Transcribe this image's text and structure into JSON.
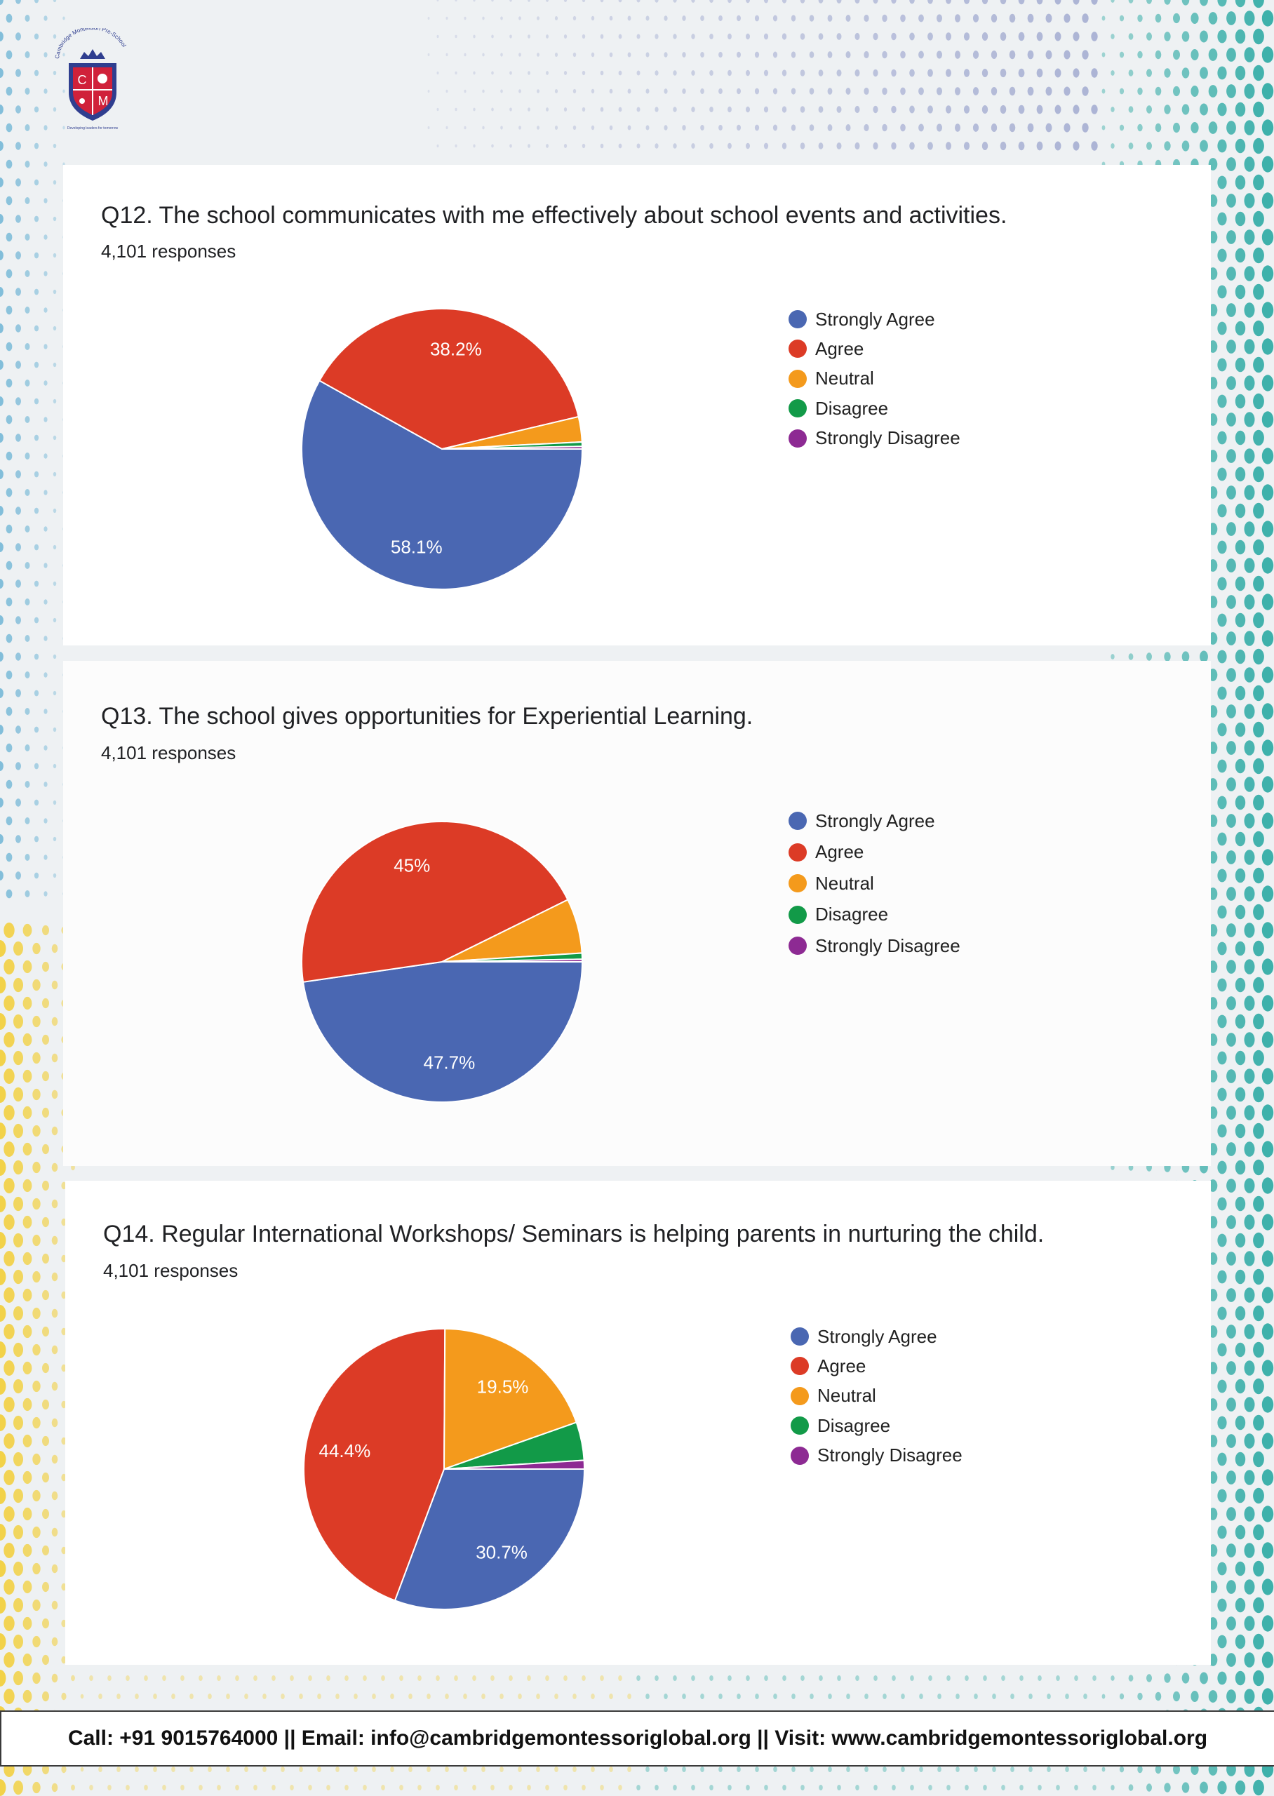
{
  "logo": {
    "top_text": "Cambridge Montessori Pre-School",
    "letters": [
      "C",
      "M"
    ],
    "motto": "Developing leaders for tomorrow",
    "colors": {
      "shield_blue": "#2f3e8f",
      "shield_red": "#d0213a"
    }
  },
  "colors": {
    "strongly_agree": "#4a67b2",
    "agree": "#dc3b26",
    "neutral": "#f49a1c",
    "disagree": "#129a48",
    "strongly_disagree": "#8d2a93"
  },
  "chart_data": [
    {
      "type": "pie",
      "title": "Q12. The school communicates with me effectively about school events and activities.",
      "subtitle": "4,101 responses",
      "categories": [
        "Strongly Agree",
        "Agree",
        "Neutral",
        "Disagree",
        "Strongly Disagree"
      ],
      "values": [
        58.1,
        38.2,
        2.9,
        0.5,
        0.3
      ],
      "labels": [
        "58.1%",
        "38.2%",
        "",
        "",
        ""
      ],
      "legend": "right"
    },
    {
      "type": "pie",
      "title": "Q13. The school gives opportunities for Experiential Learning.",
      "subtitle": "4,101 responses",
      "categories": [
        "Strongly Agree",
        "Agree",
        "Neutral",
        "Disagree",
        "Strongly Disagree"
      ],
      "values": [
        47.7,
        45.0,
        6.3,
        0.7,
        0.3
      ],
      "labels": [
        "47.7%",
        "45%",
        "",
        "",
        ""
      ],
      "legend": "right"
    },
    {
      "type": "pie",
      "title": "Q14. Regular International Workshops/ Seminars is helping parents in nurturing the child.",
      "subtitle": "4,101 responses",
      "categories": [
        "Strongly Agree",
        "Agree",
        "Neutral",
        "Disagree",
        "Strongly Disagree"
      ],
      "values": [
        30.7,
        44.4,
        19.5,
        4.4,
        1.0
      ],
      "labels": [
        "30.7%",
        "44.4%",
        "19.5%",
        "",
        ""
      ],
      "legend": "right"
    }
  ],
  "footer": {
    "text": "Call: +91 9015764000 || Email: info@cambridgemontessoriglobal.org || Visit: www.cambridgemontessoriglobal.org"
  }
}
